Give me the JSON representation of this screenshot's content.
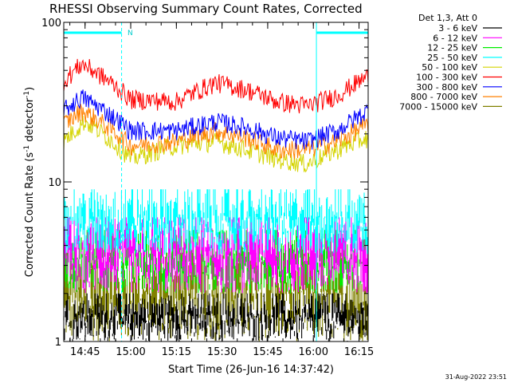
{
  "chart_data": {
    "type": "line",
    "title": "RHESSI Observing Summary Count Rates, Corrected",
    "xlabel": "Start Time (26-Jun-16 14:37:42)",
    "ylabel": "Corrected Count Rate (s⁻¹ detector⁻¹)",
    "ylabel_parts": {
      "main": "Corrected Count Rate (s",
      "sup1": "-1",
      "mid": " detector",
      "sup2": "-1",
      "end": ")"
    },
    "yscale": "log",
    "xlim_min": [
      0,
      100
    ],
    "ylim": [
      1,
      100
    ],
    "x_ticks": [
      {
        "v": 7,
        "label": "14:45"
      },
      {
        "v": 22,
        "label": "15:00"
      },
      {
        "v": 37,
        "label": "15:15"
      },
      {
        "v": 52,
        "label": "15:30"
      },
      {
        "v": 67,
        "label": "15:45"
      },
      {
        "v": 82,
        "label": "16:00"
      },
      {
        "v": 97,
        "label": "16:15"
      }
    ],
    "y_ticks": [
      {
        "v": 1,
        "label": "1"
      },
      {
        "v": 10,
        "label": "10"
      },
      {
        "v": 100,
        "label": "100"
      }
    ],
    "legend_header": "Det 1,3, Att 0",
    "legend_position": "right",
    "series": [
      {
        "name": "3 - 6 keV",
        "color": "#000000",
        "band": "low",
        "lo": 1.0,
        "hi": 2.0
      },
      {
        "name": "6 - 12 keV",
        "color": "#ff00ff",
        "band": "mid",
        "lo": 2.0,
        "hi": 6.0
      },
      {
        "name": "12 - 25 keV",
        "color": "#00ee00",
        "band": "mid",
        "lo": 2.0,
        "hi": 5.0
      },
      {
        "name": "25 - 50 keV",
        "color": "#00ffff",
        "band": "mid",
        "lo": 3.5,
        "hi": 9.0
      },
      {
        "name": "50 - 100 keV",
        "color": "#d4d400",
        "profile": [
          [
            0,
            18
          ],
          [
            7,
            24
          ],
          [
            22,
            14
          ],
          [
            37,
            17
          ],
          [
            50,
            18
          ],
          [
            60,
            16
          ],
          [
            70,
            14
          ],
          [
            80,
            13
          ],
          [
            90,
            16
          ],
          [
            100,
            19
          ]
        ]
      },
      {
        "name": "100 - 300 keV",
        "color": "#ff0000",
        "profile": [
          [
            0,
            43
          ],
          [
            6,
            55
          ],
          [
            22,
            33
          ],
          [
            37,
            32
          ],
          [
            50,
            42
          ],
          [
            60,
            38
          ],
          [
            70,
            32
          ],
          [
            80,
            30
          ],
          [
            90,
            35
          ],
          [
            100,
            46
          ]
        ]
      },
      {
        "name": "300 - 800 keV",
        "color": "#0000ff",
        "profile": [
          [
            0,
            28
          ],
          [
            6,
            34
          ],
          [
            22,
            21
          ],
          [
            37,
            21
          ],
          [
            50,
            24
          ],
          [
            60,
            22
          ],
          [
            70,
            19
          ],
          [
            80,
            18
          ],
          [
            90,
            21
          ],
          [
            100,
            28
          ]
        ]
      },
      {
        "name": "800 - 7000 keV",
        "color": "#ff8000",
        "profile": [
          [
            0,
            23
          ],
          [
            6,
            28
          ],
          [
            22,
            17
          ],
          [
            37,
            18
          ],
          [
            50,
            21
          ],
          [
            60,
            19
          ],
          [
            70,
            16
          ],
          [
            80,
            16
          ],
          [
            90,
            18
          ],
          [
            100,
            23
          ]
        ]
      },
      {
        "name": "7000 - 15000 keV",
        "color": "#808000",
        "band": "low",
        "lo": 1.0,
        "hi": 3.6
      }
    ],
    "annotations": {
      "day_night_start": [
        0,
        100
      ],
      "day_night_end": [
        19,
        83
      ],
      "saa_label": "N"
    },
    "timestamp": "31-Aug-2022 23:51"
  }
}
